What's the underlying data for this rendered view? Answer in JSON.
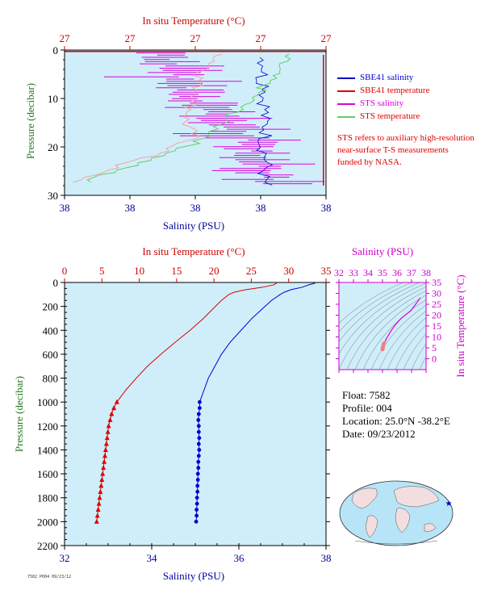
{
  "colors": {
    "plot_bg": "#cfeefa",
    "salinity": "#0000cc",
    "temperature": "#e00000",
    "sts_salinity": "#dd00dd",
    "sts_temperature": "#66cc66",
    "label_pressure": "#227722",
    "label_salinity": "#000099",
    "label_temp": "#cc0000",
    "ts_axis": "#cc00cc"
  },
  "legend": {
    "items": [
      {
        "label": "SBE41 salinity",
        "color": "#0000cc"
      },
      {
        "label": "SBE41 temperature",
        "color": "#e00000"
      },
      {
        "label": "STS salinity",
        "color": "#dd00dd"
      },
      {
        "label": "STS temperature",
        "color": "#66cc66"
      }
    ],
    "note": "STS refers to auxiliary high-resolution near-surface T-S measurements funded by NASA."
  },
  "float_info": {
    "float": "Float: 7582",
    "profile": "Profile: 004",
    "location": "Location: 25.0°N -38.2°E",
    "date": "Date: 09/23/2012"
  },
  "fine_print": "7582 P004 09/23/12",
  "chart_data": [
    {
      "type": "line",
      "name": "near-surface profile",
      "title": "",
      "top_axis_label": "In situ Temperature (°C)",
      "top_ticks": [
        "27",
        "27",
        "27",
        "27",
        "27"
      ],
      "bottom_axis_label": "Salinity (PSU)",
      "bottom_ticks": [
        "38",
        "38",
        "38",
        "38",
        "38"
      ],
      "ylabel": "Pressure (decibar)",
      "y_ticks": [
        "0",
        "10",
        "20",
        "30"
      ],
      "ylim": [
        0,
        30
      ],
      "sbe41_salinity": {
        "y": [
          2,
          4,
          6,
          8,
          10,
          12,
          14,
          16,
          18,
          20,
          22,
          24,
          26,
          28
        ],
        "x": [
          0.76,
          0.77,
          0.75,
          0.78,
          0.76,
          0.77,
          0.76,
          0.77,
          0.77,
          0.76,
          0.77,
          0.77,
          0.76,
          0.77
        ]
      },
      "sbe41_temperature": {
        "y": [
          1,
          28
        ],
        "x": [
          0.99,
          0.99
        ]
      },
      "sts_salinity_center": {
        "y": [
          1,
          5,
          10,
          15,
          20,
          25,
          28
        ],
        "x": [
          0.38,
          0.42,
          0.5,
          0.62,
          0.74,
          0.76,
          0.77
        ]
      },
      "sts_temperature_center": {
        "y": [
          1,
          5,
          10,
          15,
          18,
          21,
          24,
          27
        ],
        "x": [
          0.85,
          0.8,
          0.72,
          0.6,
          0.55,
          0.42,
          0.25,
          0.08
        ]
      },
      "sts_temperature_secondary": {
        "y": [
          1,
          5,
          10,
          15,
          18,
          21,
          24,
          27
        ],
        "x": [
          0.6,
          0.52,
          0.5,
          0.46,
          0.5,
          0.38,
          0.2,
          0.05
        ]
      }
    },
    {
      "type": "line",
      "name": "full profile",
      "title": "",
      "top_axis_label": "In situ Temperature (°C)",
      "xlim_temperature": [
        0,
        35
      ],
      "top_ticks": [
        "0",
        "5",
        "10",
        "15",
        "20",
        "25",
        "30",
        "35"
      ],
      "bottom_axis_label": "Salinity (PSU)",
      "xlim_salinity": [
        32,
        38
      ],
      "bottom_ticks": [
        "32",
        "34",
        "36",
        "38"
      ],
      "ylabel": "Pressure (decibar)",
      "ylim": [
        0,
        2200
      ],
      "y_ticks": [
        "0",
        "200",
        "400",
        "600",
        "800",
        "1000",
        "1200",
        "1400",
        "1600",
        "1800",
        "2000",
        "2200"
      ],
      "salinity": {
        "pressure": [
          5,
          20,
          40,
          60,
          80,
          100,
          150,
          200,
          300,
          400,
          500,
          600,
          700,
          800,
          900,
          1000,
          1050,
          1100,
          1150,
          1200,
          1250,
          1300,
          1350,
          1400,
          1450,
          1500,
          1550,
          1600,
          1650,
          1700,
          1750,
          1800,
          1850,
          1900,
          1950,
          2000
        ],
        "values": [
          37.75,
          37.6,
          37.45,
          37.2,
          37.05,
          36.95,
          36.75,
          36.6,
          36.3,
          36.05,
          35.8,
          35.6,
          35.45,
          35.3,
          35.2,
          35.1,
          35.1,
          35.08,
          35.07,
          35.08,
          35.08,
          35.09,
          35.08,
          35.09,
          35.08,
          35.07,
          35.07,
          35.06,
          35.06,
          35.05,
          35.05,
          35.04,
          35.04,
          35.03,
          35.03,
          35.02
        ]
      },
      "temperature": {
        "pressure": [
          5,
          20,
          40,
          60,
          80,
          100,
          150,
          200,
          300,
          400,
          500,
          600,
          700,
          800,
          900,
          1000,
          1050,
          1100,
          1150,
          1200,
          1250,
          1300,
          1350,
          1400,
          1450,
          1500,
          1550,
          1600,
          1650,
          1700,
          1750,
          1800,
          1850,
          1900,
          1950,
          2000
        ],
        "values": [
          28.4,
          28.0,
          26.5,
          24.3,
          22.8,
          22.0,
          21.0,
          20.2,
          18.6,
          16.8,
          14.8,
          12.9,
          11.1,
          9.6,
          8.2,
          7.0,
          6.6,
          6.3,
          6.1,
          5.9,
          5.8,
          5.7,
          5.6,
          5.5,
          5.4,
          5.3,
          5.2,
          5.1,
          5.0,
          4.9,
          4.8,
          4.7,
          4.6,
          4.5,
          4.4,
          4.3
        ]
      }
    },
    {
      "type": "scatter",
      "name": "T-S diagram",
      "title": "",
      "xlabel": "Salinity (PSU)",
      "ylabel": "In situ Temperature (°C)",
      "xlim": [
        32,
        38
      ],
      "ylim": [
        -5,
        35
      ],
      "x_ticks": [
        "32",
        "33",
        "34",
        "35",
        "36",
        "37",
        "38"
      ],
      "y_ticks": [
        "0",
        "5",
        "10",
        "15",
        "20",
        "25",
        "30",
        "35"
      ],
      "points": {
        "salinity": [
          35.0,
          35.02,
          35.05,
          35.1,
          35.3,
          35.6,
          35.8,
          36.05,
          36.3,
          36.6,
          36.95,
          37.2,
          37.45,
          37.6
        ],
        "temperature": [
          4.3,
          5.0,
          6.0,
          7.0,
          9.6,
          12.9,
          14.8,
          16.8,
          18.6,
          20.2,
          22.0,
          24.3,
          26.5,
          28.0
        ]
      }
    }
  ]
}
